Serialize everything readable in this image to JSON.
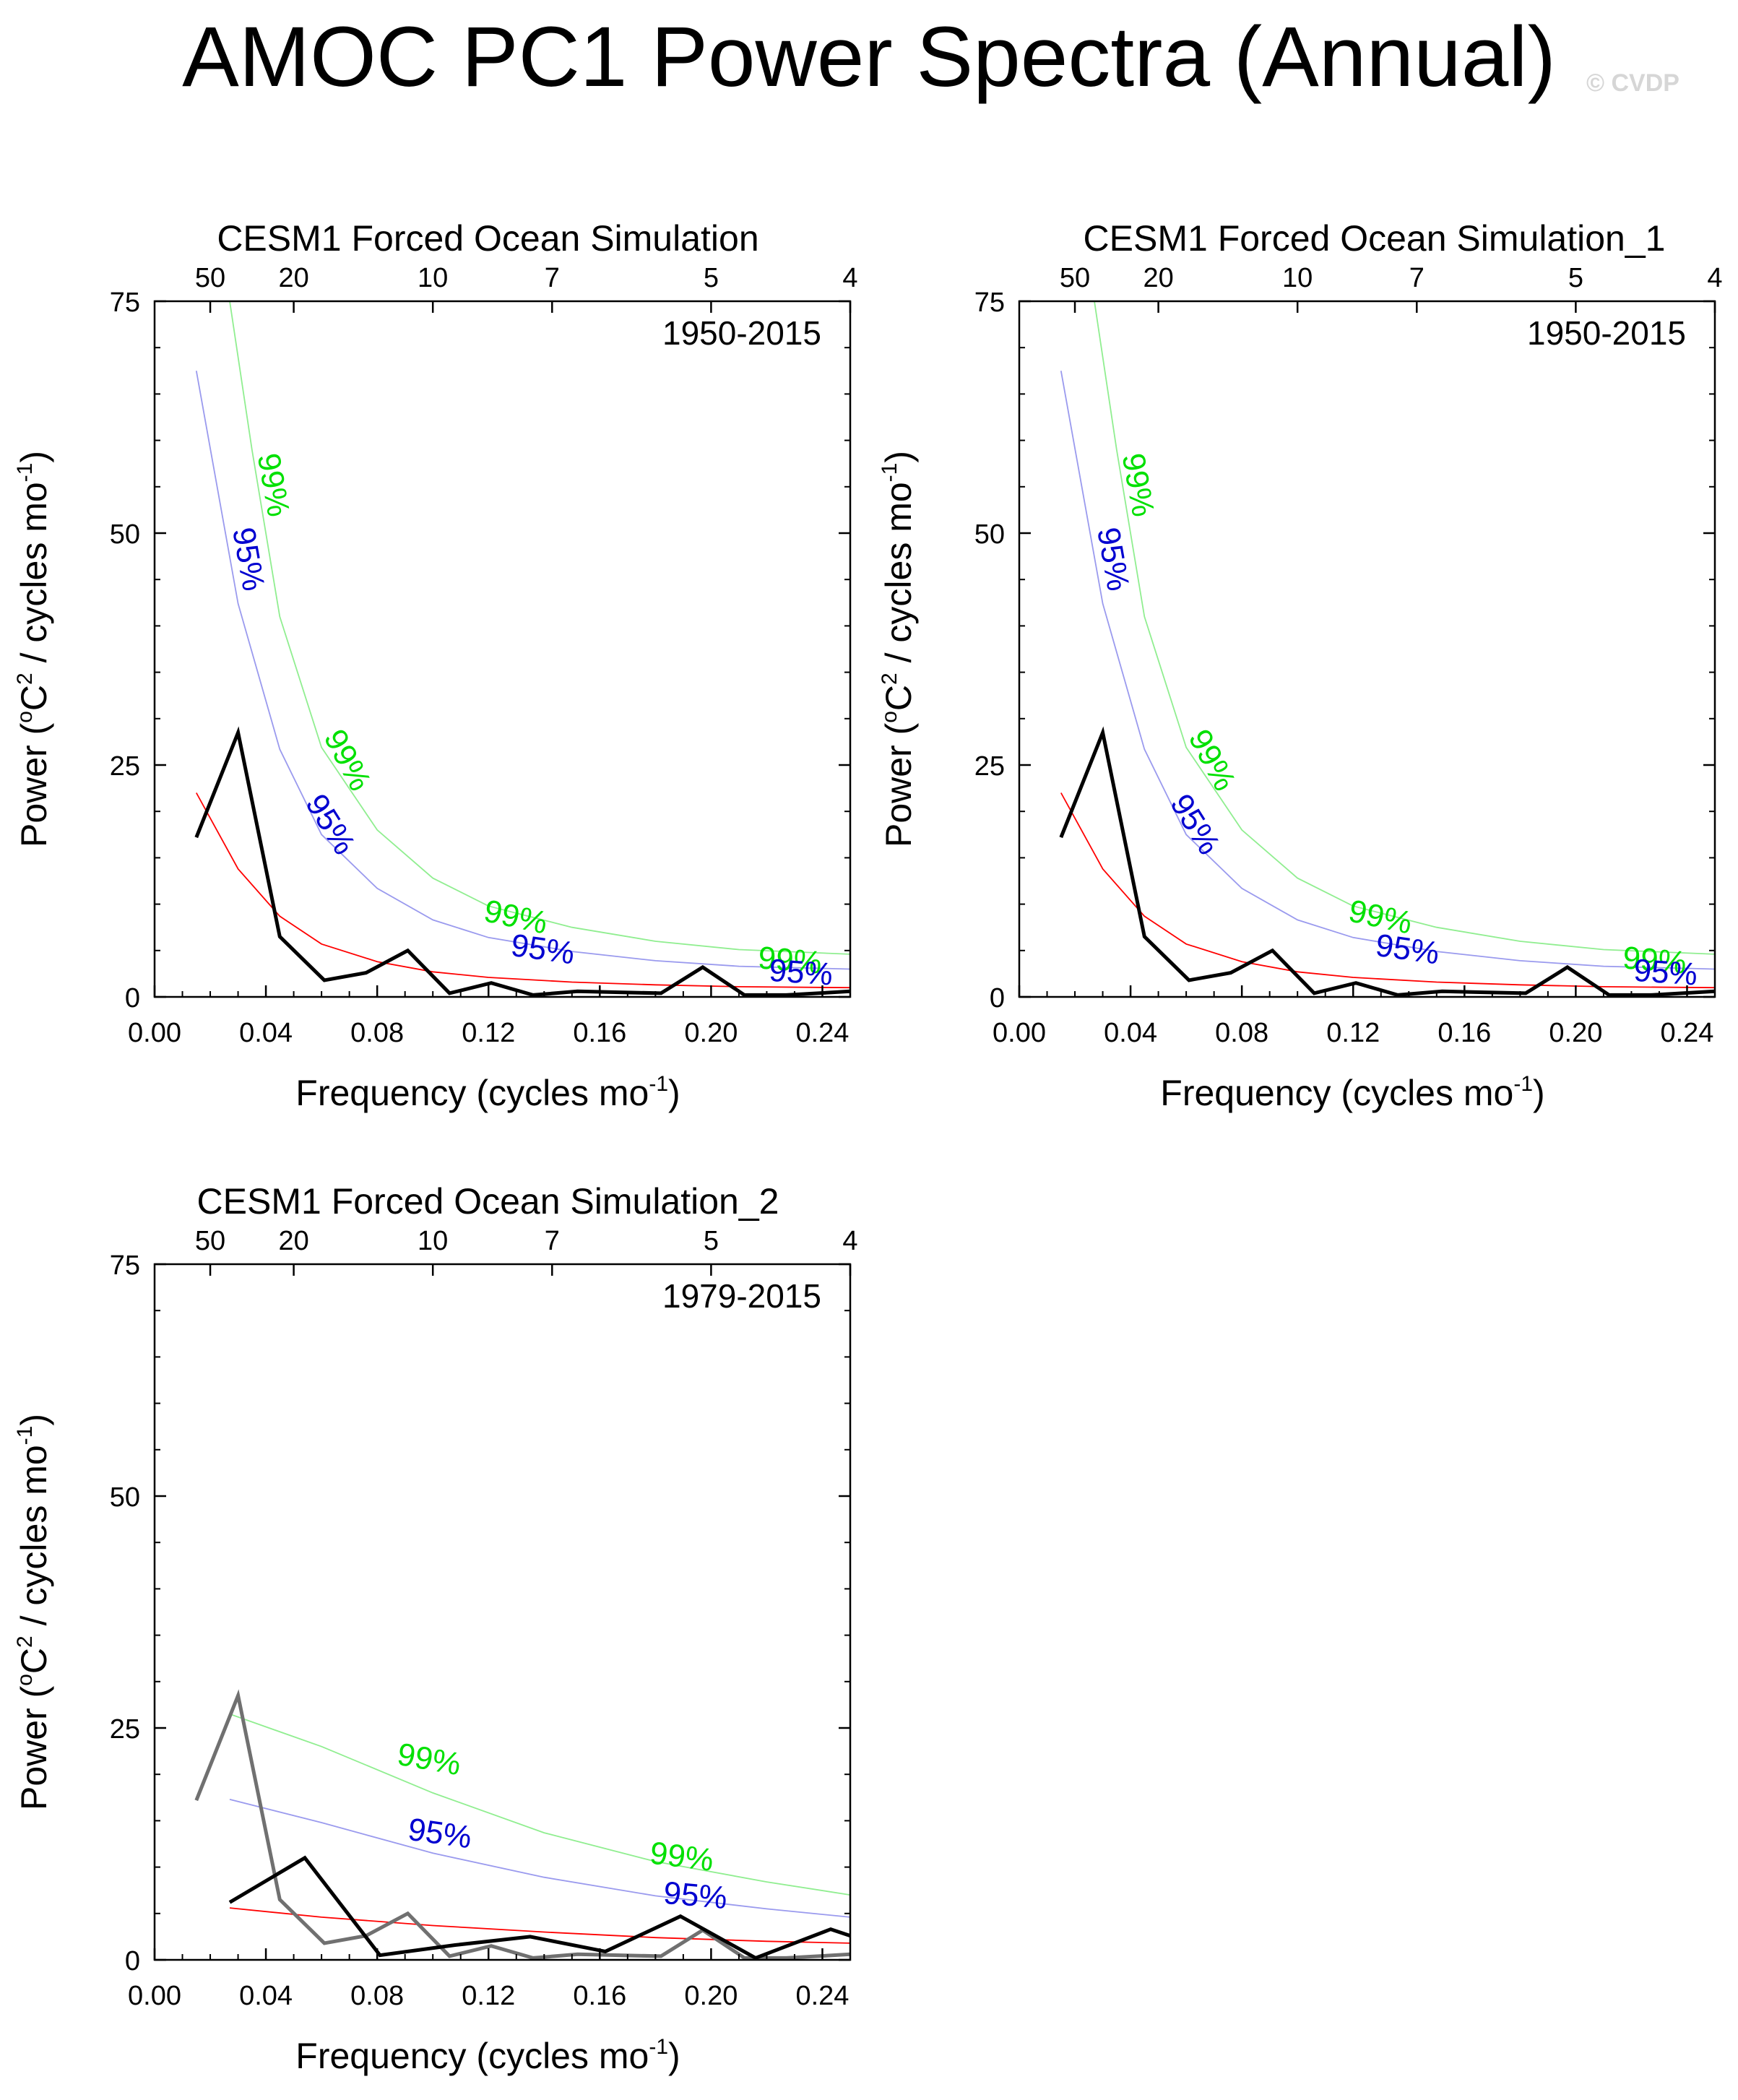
{
  "page": {
    "title": "AMOC PC1 Power Spectra (Annual)",
    "watermark": "© CVDP"
  },
  "colors": {
    "spectrum": "#000000",
    "obs_spectrum": "#707070",
    "red_noise": "#ff0000",
    "ci95": "#0000d0",
    "ci95_line": "#9a9aee",
    "ci99": "#00e000",
    "ci99_line": "#90ee90"
  },
  "chart_data": [
    {
      "type": "line",
      "title": "CESM1 Forced Ocean Simulation",
      "period_label": "1950-2015",
      "xlabel": "Frequency (cycles mo",
      "xlabel_sup": "-1",
      "xlabel_tail": ")",
      "ylabel": "Power (",
      "ylabel_sup1": "o",
      "ylabel_mid": "C",
      "ylabel_sup2": "2",
      "ylabel_tail": " / cycles mo",
      "ylabel_sup3": "-1",
      "ylabel_end": ")",
      "xlim": [
        0,
        0.25
      ],
      "ylim": [
        0,
        75
      ],
      "xticks": [
        0.0,
        0.04,
        0.08,
        0.12,
        0.16,
        0.2,
        0.24
      ],
      "xtick_labels": [
        "0.00",
        "0.04",
        "0.08",
        "0.12",
        "0.16",
        "0.20",
        "0.24"
      ],
      "yticks": [
        0,
        25,
        50,
        75
      ],
      "ytick_labels": [
        "0",
        "25",
        "50",
        "75"
      ],
      "top_axis_periods": [
        50,
        20,
        10,
        7,
        5,
        4
      ],
      "top_axis_labels": [
        "50",
        "20",
        "10",
        "7",
        "5",
        "4"
      ],
      "series": [
        {
          "name": "spectrum",
          "x": [
            0.015,
            0.03,
            0.045,
            0.061,
            0.076,
            0.091,
            0.106,
            0.121,
            0.136,
            0.152,
            0.167,
            0.182,
            0.197,
            0.212,
            0.227,
            0.25
          ],
          "y": [
            17.2,
            28.5,
            6.5,
            1.8,
            2.6,
            5.0,
            0.4,
            1.5,
            0.2,
            0.6,
            0.5,
            0.4,
            3.2,
            0.2,
            0.2,
            0.6
          ]
        },
        {
          "name": "red noise",
          "x": [
            0.015,
            0.03,
            0.045,
            0.06,
            0.08,
            0.1,
            0.12,
            0.15,
            0.18,
            0.21,
            0.25
          ],
          "y": [
            22.0,
            13.8,
            8.7,
            5.7,
            3.8,
            2.7,
            2.1,
            1.6,
            1.3,
            1.1,
            1.0
          ]
        },
        {
          "name": "95%",
          "x": [
            0.015,
            0.03,
            0.045,
            0.06,
            0.08,
            0.1,
            0.12,
            0.15,
            0.18,
            0.21,
            0.25
          ],
          "y": [
            67.5,
            42.4,
            26.7,
            17.5,
            11.7,
            8.3,
            6.4,
            4.9,
            3.9,
            3.3,
            3.0
          ]
        },
        {
          "name": "99%",
          "x": [
            0.027,
            0.035,
            0.045,
            0.06,
            0.08,
            0.1,
            0.12,
            0.15,
            0.18,
            0.21,
            0.25
          ],
          "y": [
            75.0,
            59.0,
            41.0,
            26.9,
            18.0,
            12.8,
            9.8,
            7.5,
            6.0,
            5.1,
            4.6
          ]
        }
      ],
      "annotations": [
        "99%",
        "95%",
        "99%",
        "95%",
        "99%",
        "95%",
        "99%",
        "95%"
      ]
    },
    {
      "type": "line",
      "title": "CESM1 Forced Ocean Simulation_1",
      "period_label": "1950-2015",
      "xlabel": "Frequency (cycles mo",
      "xlabel_sup": "-1",
      "xlabel_tail": ")",
      "ylabel": "Power (",
      "ylabel_sup1": "o",
      "ylabel_mid": "C",
      "ylabel_sup2": "2",
      "ylabel_tail": " / cycles mo",
      "ylabel_sup3": "-1",
      "ylabel_end": ")",
      "xlim": [
        0,
        0.25
      ],
      "ylim": [
        0,
        75
      ],
      "xticks": [
        0.0,
        0.04,
        0.08,
        0.12,
        0.16,
        0.2,
        0.24
      ],
      "xtick_labels": [
        "0.00",
        "0.04",
        "0.08",
        "0.12",
        "0.16",
        "0.20",
        "0.24"
      ],
      "yticks": [
        0,
        25,
        50,
        75
      ],
      "ytick_labels": [
        "0",
        "25",
        "50",
        "75"
      ],
      "top_axis_periods": [
        50,
        20,
        10,
        7,
        5,
        4
      ],
      "top_axis_labels": [
        "50",
        "20",
        "10",
        "7",
        "5",
        "4"
      ],
      "series": [
        {
          "name": "spectrum",
          "x": [
            0.015,
            0.03,
            0.045,
            0.061,
            0.076,
            0.091,
            0.106,
            0.121,
            0.136,
            0.152,
            0.167,
            0.182,
            0.197,
            0.212,
            0.227,
            0.25
          ],
          "y": [
            17.2,
            28.5,
            6.5,
            1.8,
            2.6,
            5.0,
            0.4,
            1.5,
            0.2,
            0.6,
            0.5,
            0.4,
            3.2,
            0.2,
            0.2,
            0.6
          ]
        },
        {
          "name": "red noise",
          "x": [
            0.015,
            0.03,
            0.045,
            0.06,
            0.08,
            0.1,
            0.12,
            0.15,
            0.18,
            0.21,
            0.25
          ],
          "y": [
            22.0,
            13.8,
            8.7,
            5.7,
            3.8,
            2.7,
            2.1,
            1.6,
            1.3,
            1.1,
            1.0
          ]
        },
        {
          "name": "95%",
          "x": [
            0.015,
            0.03,
            0.045,
            0.06,
            0.08,
            0.1,
            0.12,
            0.15,
            0.18,
            0.21,
            0.25
          ],
          "y": [
            67.5,
            42.4,
            26.7,
            17.5,
            11.7,
            8.3,
            6.4,
            4.9,
            3.9,
            3.3,
            3.0
          ]
        },
        {
          "name": "99%",
          "x": [
            0.027,
            0.035,
            0.045,
            0.06,
            0.08,
            0.1,
            0.12,
            0.15,
            0.18,
            0.21,
            0.25
          ],
          "y": [
            75.0,
            59.0,
            41.0,
            26.9,
            18.0,
            12.8,
            9.8,
            7.5,
            6.0,
            5.1,
            4.6
          ]
        }
      ],
      "annotations": [
        "99%",
        "95%",
        "99%",
        "95%",
        "99%",
        "95%",
        "99%",
        "95%"
      ]
    },
    {
      "type": "line",
      "title": "CESM1 Forced Ocean Simulation_2",
      "period_label": "1979-2015",
      "xlabel": "Frequency (cycles mo",
      "xlabel_sup": "-1",
      "xlabel_tail": ")",
      "ylabel": "Power (",
      "ylabel_sup1": "o",
      "ylabel_mid": "C",
      "ylabel_sup2": "2",
      "ylabel_tail": " / cycles mo",
      "ylabel_sup3": "-1",
      "ylabel_end": ")",
      "xlim": [
        0,
        0.25
      ],
      "ylim": [
        0,
        75
      ],
      "xticks": [
        0.0,
        0.04,
        0.08,
        0.12,
        0.16,
        0.2,
        0.24
      ],
      "xtick_labels": [
        "0.00",
        "0.04",
        "0.08",
        "0.12",
        "0.16",
        "0.20",
        "0.24"
      ],
      "yticks": [
        0,
        25,
        50,
        75
      ],
      "ytick_labels": [
        "0",
        "25",
        "50",
        "75"
      ],
      "top_axis_periods": [
        50,
        20,
        10,
        7,
        5,
        4
      ],
      "top_axis_labels": [
        "50",
        "20",
        "10",
        "7",
        "5",
        "4"
      ],
      "series": [
        {
          "name": "obs spectrum (1950-2015)",
          "x": [
            0.015,
            0.03,
            0.045,
            0.061,
            0.076,
            0.091,
            0.106,
            0.121,
            0.136,
            0.152,
            0.167,
            0.182,
            0.197,
            0.212,
            0.227,
            0.25
          ],
          "y": [
            17.2,
            28.5,
            6.5,
            1.8,
            2.6,
            5.0,
            0.4,
            1.5,
            0.2,
            0.6,
            0.5,
            0.4,
            3.2,
            0.2,
            0.2,
            0.6
          ]
        },
        {
          "name": "spectrum",
          "x": [
            0.027,
            0.054,
            0.081,
            0.108,
            0.135,
            0.162,
            0.189,
            0.216,
            0.243,
            0.25
          ],
          "y": [
            6.2,
            11.0,
            0.5,
            1.6,
            2.5,
            0.9,
            4.7,
            0.2,
            3.3,
            2.6
          ]
        },
        {
          "name": "red noise",
          "x": [
            0.027,
            0.06,
            0.1,
            0.14,
            0.18,
            0.22,
            0.25
          ],
          "y": [
            5.6,
            4.6,
            3.7,
            3.0,
            2.4,
            2.0,
            1.8
          ]
        },
        {
          "name": "95%",
          "x": [
            0.027,
            0.06,
            0.1,
            0.14,
            0.18,
            0.22,
            0.25
          ],
          "y": [
            17.3,
            14.8,
            11.5,
            8.9,
            6.9,
            5.5,
            4.6
          ]
        },
        {
          "name": "99%",
          "x": [
            0.027,
            0.06,
            0.1,
            0.14,
            0.18,
            0.22,
            0.25
          ],
          "y": [
            26.5,
            23.0,
            18.0,
            13.7,
            10.6,
            8.4,
            7.0
          ]
        }
      ],
      "annotations": [
        "99%",
        "95%",
        "99%",
        "95%"
      ]
    }
  ]
}
